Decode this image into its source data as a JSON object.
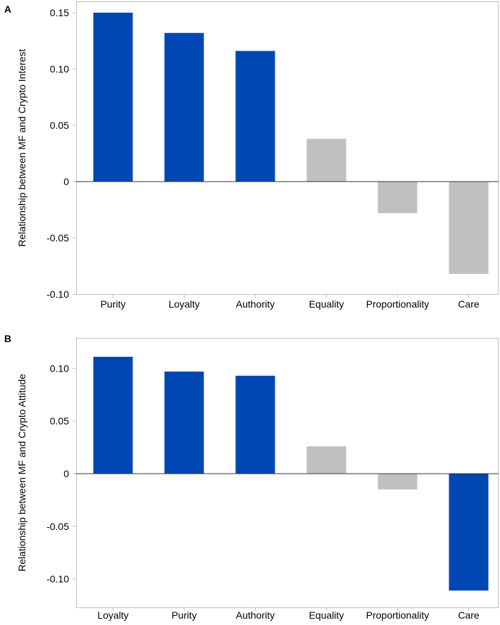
{
  "colors": {
    "significant": "#0047b3",
    "nonsignificant": "#c0c0c0",
    "frame": "#bfbfbf",
    "zero_line": "#333333"
  },
  "chart_data": [
    {
      "type": "bar",
      "panel_label": "A",
      "ylabel": "Relationship between MF and Crypto Interest",
      "categories": [
        "Purity",
        "Loyalty",
        "Authority",
        "Equality",
        "Proportionality",
        "Care"
      ],
      "values": [
        0.15,
        0.132,
        0.116,
        0.038,
        -0.028,
        -0.082
      ],
      "significant": [
        true,
        true,
        true,
        false,
        false,
        false
      ],
      "ylim": [
        -0.1,
        0.16
      ],
      "yticks": [
        0.15,
        0.1,
        0.05,
        0,
        -0.05,
        -0.1
      ],
      "ytick_labels": [
        "0.15",
        "0.10",
        "0.05",
        "0",
        "-0.05",
        "-0.10"
      ]
    },
    {
      "type": "bar",
      "panel_label": "B",
      "ylabel": "Relationship between MF and Crypto Attitude",
      "categories": [
        "Loyalty",
        "Purity",
        "Authority",
        "Equality",
        "Proportionality",
        "Care"
      ],
      "values": [
        0.111,
        0.097,
        0.093,
        0.026,
        -0.015,
        -0.111
      ],
      "significant": [
        true,
        true,
        true,
        false,
        false,
        true
      ],
      "ylim": [
        -0.127,
        0.129
      ],
      "yticks": [
        0.1,
        0.05,
        0,
        -0.05,
        -0.1
      ],
      "ytick_labels": [
        "0.10",
        "0.05",
        "0",
        "-0.05",
        "-0.10"
      ]
    }
  ]
}
